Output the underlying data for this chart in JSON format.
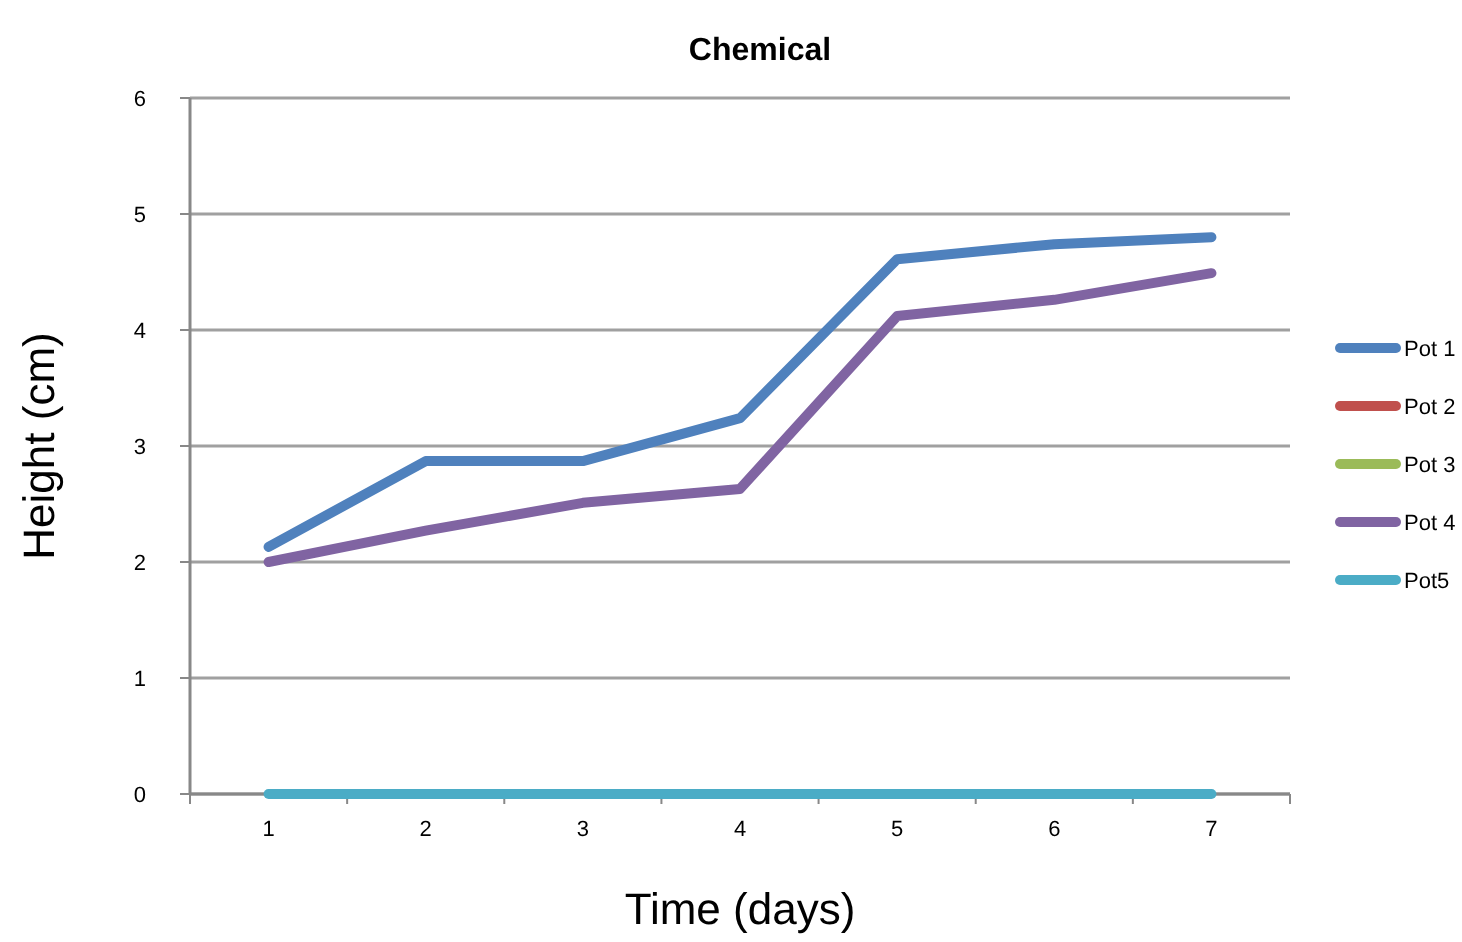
{
  "chart_data": {
    "type": "line",
    "title": "Chemical",
    "xlabel": "Time (days)",
    "ylabel": "Height (cm)",
    "categories": [
      "1",
      "2",
      "3",
      "4",
      "5",
      "6",
      "7"
    ],
    "series": [
      {
        "name": "Pot 1",
        "color": "#4f81bd",
        "values": [
          2.13,
          2.87,
          2.87,
          3.24,
          4.61,
          4.74,
          4.8
        ]
      },
      {
        "name": "Pot 2",
        "color": "#c0504d",
        "values": [
          null,
          null,
          null,
          null,
          null,
          null,
          null
        ]
      },
      {
        "name": "Pot 3",
        "color": "#9bbb59",
        "values": [
          null,
          null,
          null,
          null,
          null,
          null,
          null
        ]
      },
      {
        "name": "Pot 4",
        "color": "#8064a2",
        "values": [
          2.0,
          2.27,
          2.51,
          2.63,
          4.12,
          4.26,
          4.49
        ]
      },
      {
        "name": "Pot5",
        "color": "#4bacc6",
        "values": [
          0,
          0,
          0,
          0,
          0,
          0,
          0
        ]
      }
    ],
    "ylim": [
      0,
      6
    ],
    "yticks": [
      0,
      1,
      2,
      3,
      4,
      5,
      6
    ],
    "grid": "y",
    "legend": "right",
    "marker": "none",
    "line_style": "solid"
  }
}
